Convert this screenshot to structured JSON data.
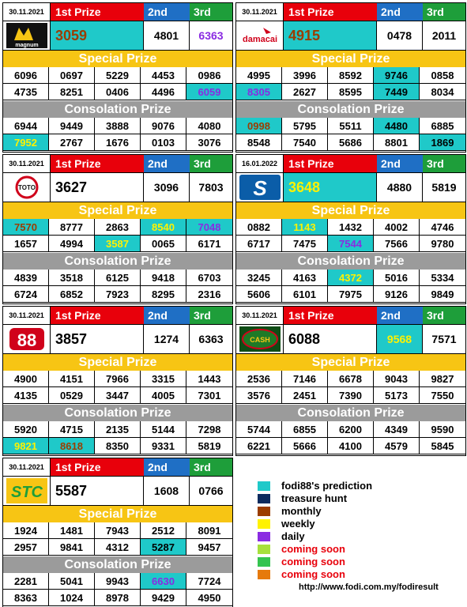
{
  "labels": {
    "first": "1st Prize",
    "second": "2nd",
    "third": "3rd",
    "special": "Special Prize",
    "consolation": "Consolation Prize"
  },
  "panels": [
    {
      "id": "magnum",
      "logo": "magnum-logo",
      "logo_text": "magnum",
      "date": "30.11.2021",
      "first": "3059",
      "first_style": "cyan-brown",
      "second": "4801",
      "second_style": "",
      "third": "6363",
      "third_style": "purple",
      "special": [
        [
          "6096",
          "0697",
          "5229",
          "4453",
          "0986"
        ],
        [
          "4735",
          "8251",
          "0406",
          "4496",
          "6059"
        ]
      ],
      "special_styles": [
        [
          "",
          "",
          "",
          "",
          ""
        ],
        [
          "",
          "",
          "",
          "",
          "cyan-purple"
        ]
      ],
      "consolation": [
        [
          "6944",
          "9449",
          "3888",
          "9076",
          "4080"
        ],
        [
          "7952",
          "2767",
          "1676",
          "0103",
          "3076"
        ]
      ],
      "consolation_styles": [
        [
          "",
          "",
          "",
          "",
          ""
        ],
        [
          "cyan-yellowtext",
          "",
          "",
          "",
          ""
        ]
      ]
    },
    {
      "id": "damacai",
      "logo": "damacai-logo",
      "logo_text": "damacai",
      "date": "30.11.2021",
      "first": "4915",
      "first_style": "cyan-brown",
      "second": "0478",
      "second_style": "",
      "third": "2011",
      "third_style": "",
      "special": [
        [
          "4995",
          "3996",
          "8592",
          "9746",
          "0858"
        ],
        [
          "8305",
          "2627",
          "8595",
          "7449",
          "8034"
        ]
      ],
      "special_styles": [
        [
          "",
          "",
          "",
          "cyan",
          ""
        ],
        [
          "cyan-purple",
          "",
          "",
          "cyan",
          ""
        ]
      ],
      "consolation": [
        [
          "0998",
          "5795",
          "5511",
          "4480",
          "6885"
        ],
        [
          "8548",
          "7540",
          "5686",
          "8801",
          "1869"
        ]
      ],
      "consolation_styles": [
        [
          "cyan-brown",
          "",
          "",
          "cyan",
          ""
        ],
        [
          "",
          "",
          "",
          "",
          "cyan"
        ]
      ]
    },
    {
      "id": "toto",
      "logo": "toto-logo",
      "logo_text": "TOTO",
      "date": "30.11.2021",
      "first": "3627",
      "first_style": "",
      "second": "3096",
      "second_style": "",
      "third": "7803",
      "third_style": "",
      "special": [
        [
          "7570",
          "8777",
          "2863",
          "8540",
          "7048"
        ],
        [
          "1657",
          "4994",
          "3587",
          "0065",
          "6171"
        ]
      ],
      "special_styles": [
        [
          "cyan-brown",
          "",
          "",
          "cyan-yellowtext",
          "cyan-purple"
        ],
        [
          "",
          "",
          "cyan-yellowtext",
          "",
          ""
        ]
      ],
      "consolation": [
        [
          "4839",
          "3518",
          "6125",
          "9418",
          "6703"
        ],
        [
          "6724",
          "6852",
          "7923",
          "8295",
          "2316"
        ]
      ],
      "consolation_styles": [
        [
          "",
          "",
          "",
          "",
          ""
        ],
        [
          "",
          "",
          "",
          "",
          ""
        ]
      ]
    },
    {
      "id": "sabah",
      "logo": "sabah-logo",
      "logo_text": "S",
      "date": "16.01.2022",
      "first": "3648",
      "first_style": "cyan-yellowtext",
      "second": "4880",
      "second_style": "",
      "third": "5819",
      "third_style": "",
      "special": [
        [
          "0882",
          "1143",
          "1432",
          "4002",
          "4746"
        ],
        [
          "6717",
          "7475",
          "7544",
          "7566",
          "9780"
        ]
      ],
      "special_styles": [
        [
          "",
          "cyan-yellowtext",
          "",
          "",
          ""
        ],
        [
          "",
          "",
          "cyan-purple",
          "",
          ""
        ]
      ],
      "consolation": [
        [
          "3245",
          "4163",
          "4372",
          "5016",
          "5334"
        ],
        [
          "5606",
          "6101",
          "7975",
          "9126",
          "9849"
        ]
      ],
      "consolation_styles": [
        [
          "",
          "",
          "cyan-yellowtext",
          "",
          ""
        ],
        [
          "",
          "",
          "",
          "",
          ""
        ]
      ]
    },
    {
      "id": "sandakan",
      "logo": "88-logo",
      "logo_text": "88",
      "date": "30.11.2021",
      "first": "3857",
      "first_style": "",
      "second": "1274",
      "second_style": "",
      "third": "6363",
      "third_style": "",
      "special": [
        [
          "4900",
          "4151",
          "7966",
          "3315",
          "1443"
        ],
        [
          "4135",
          "0529",
          "3447",
          "4005",
          "7301"
        ]
      ],
      "special_styles": [
        [
          "",
          "",
          "",
          "",
          ""
        ],
        [
          "",
          "",
          "",
          "",
          ""
        ]
      ],
      "consolation": [
        [
          "5920",
          "4715",
          "2135",
          "5144",
          "7298"
        ],
        [
          "9821",
          "8618",
          "8350",
          "9331",
          "5819"
        ]
      ],
      "consolation_styles": [
        [
          "",
          "",
          "",
          "",
          ""
        ],
        [
          "cyan-yellowtext",
          "cyan-brown",
          "",
          "",
          ""
        ]
      ]
    },
    {
      "id": "cashsweep",
      "logo": "cash-logo",
      "logo_text": "CASH",
      "date": "30.11.2021",
      "first": "6088",
      "first_style": "",
      "second": "9568",
      "second_style": "cyan-yellowtext",
      "third": "7571",
      "third_style": "",
      "special": [
        [
          "2536",
          "7146",
          "6678",
          "9043",
          "9827"
        ],
        [
          "3576",
          "2451",
          "7390",
          "5173",
          "7550"
        ]
      ],
      "special_styles": [
        [
          "",
          "",
          "",
          "",
          ""
        ],
        [
          "",
          "",
          "",
          "",
          ""
        ]
      ],
      "consolation": [
        [
          "5744",
          "6855",
          "6200",
          "4349",
          "9590"
        ],
        [
          "6221",
          "5666",
          "4100",
          "4579",
          "5845"
        ]
      ],
      "consolation_styles": [
        [
          "",
          "",
          "",
          "",
          ""
        ],
        [
          "",
          "",
          "",
          "",
          ""
        ]
      ]
    },
    {
      "id": "stc",
      "logo": "stc-logo",
      "logo_text": "STC",
      "date": "30.11.2021",
      "first": "5587",
      "first_style": "",
      "second": "1608",
      "second_style": "",
      "third": "0766",
      "third_style": "",
      "special": [
        [
          "1924",
          "1481",
          "7943",
          "2512",
          "8091"
        ],
        [
          "2957",
          "9841",
          "4312",
          "5287",
          "9457"
        ]
      ],
      "special_styles": [
        [
          "",
          "",
          "",
          "",
          ""
        ],
        [
          "",
          "",
          "",
          "cyan",
          ""
        ]
      ],
      "consolation": [
        [
          "2281",
          "5041",
          "9943",
          "6630",
          "7724"
        ],
        [
          "8363",
          "1024",
          "8978",
          "9429",
          "4950"
        ]
      ],
      "consolation_styles": [
        [
          "",
          "",
          "",
          "cyan-purple",
          ""
        ],
        [
          "",
          "",
          "",
          "",
          ""
        ]
      ]
    }
  ],
  "legend": [
    {
      "label": "fodi88's prediction",
      "color": "#1fc9c9",
      "text_color": "#000000"
    },
    {
      "label": "treasure hunt",
      "color": "#0d2b5e",
      "text_color": "#000000"
    },
    {
      "label": "monthly",
      "color": "#9b3d00",
      "text_color": "#000000"
    },
    {
      "label": "weekly",
      "color": "#fff200",
      "text_color": "#000000"
    },
    {
      "label": "daily",
      "color": "#8a2be2",
      "text_color": "#000000"
    },
    {
      "label": "coming soon",
      "color": "#a7e03c",
      "text_color": "#e8000b"
    },
    {
      "label": "coming soon",
      "color": "#35c44f",
      "text_color": "#e8000b"
    },
    {
      "label": "coming soon",
      "color": "#e67a0c",
      "text_color": "#e8000b"
    }
  ],
  "url": "http://www.fodi.com.my/fodiresult"
}
